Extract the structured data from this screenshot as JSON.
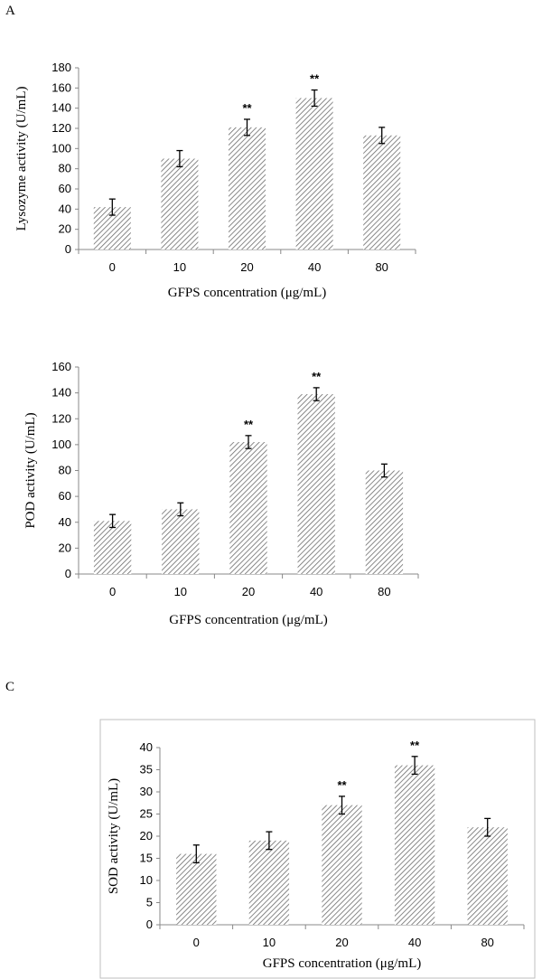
{
  "panels": {
    "a_letter": "A",
    "c_letter": "C"
  },
  "chart_data": [
    {
      "type": "bar",
      "categories": [
        "0",
        "10",
        "20",
        "40",
        "80"
      ],
      "values": [
        42,
        90,
        121,
        150,
        113
      ],
      "errors": [
        8,
        8,
        8,
        8,
        8
      ],
      "annotations": [
        "",
        "",
        "**",
        "**",
        ""
      ],
      "title": "",
      "xlabel": "GFPS concentration (μg/mL)",
      "ylabel": "Lysozyme activity (U/mL)",
      "ylim": [
        0,
        180
      ],
      "yticks": [
        0,
        20,
        40,
        60,
        80,
        100,
        120,
        140,
        160,
        180
      ],
      "grid": false,
      "legend": "none"
    },
    {
      "type": "bar",
      "categories": [
        "0",
        "10",
        "20",
        "40",
        "80"
      ],
      "values": [
        41,
        50,
        102,
        139,
        80
      ],
      "errors": [
        5,
        5,
        5,
        5,
        5
      ],
      "annotations": [
        "",
        "",
        "**",
        "**",
        ""
      ],
      "title": "",
      "xlabel": "GFPS concentration (μg/mL)",
      "ylabel": "POD activity (U/mL)",
      "ylim": [
        0,
        160
      ],
      "yticks": [
        0,
        20,
        40,
        60,
        80,
        100,
        120,
        140,
        160
      ],
      "grid": false,
      "legend": "none"
    },
    {
      "type": "bar",
      "categories": [
        "0",
        "10",
        "20",
        "40",
        "80"
      ],
      "values": [
        16,
        19,
        27,
        36,
        22
      ],
      "errors": [
        2,
        2,
        2,
        2,
        2
      ],
      "annotations": [
        "",
        "",
        "**",
        "**",
        ""
      ],
      "title": "",
      "xlabel": "GFPS concentration (μg/mL)",
      "ylabel": "SOD activity (U/mL)",
      "ylim": [
        0,
        40
      ],
      "yticks": [
        0,
        5,
        10,
        15,
        20,
        25,
        30,
        35,
        40
      ],
      "grid": false,
      "legend": "none"
    }
  ]
}
